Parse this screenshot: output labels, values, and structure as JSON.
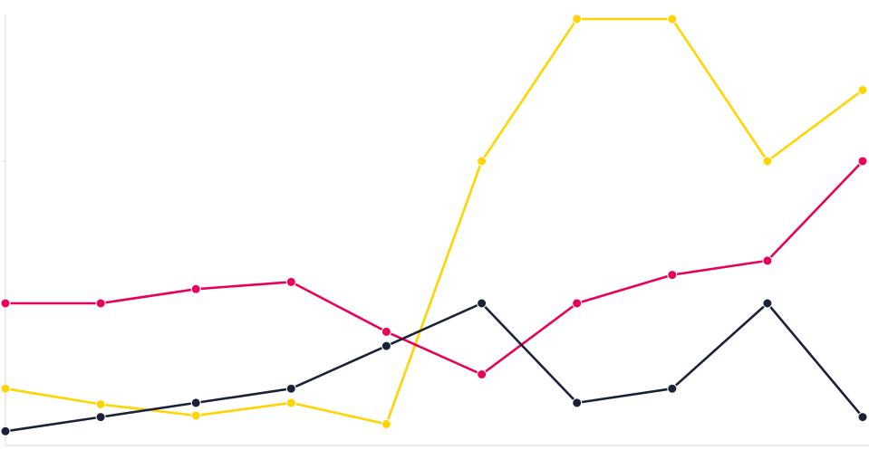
{
  "chart_data": {
    "type": "line",
    "title": "",
    "xlabel": "",
    "ylabel": "",
    "x": [
      1,
      2,
      3,
      4,
      5,
      6,
      7,
      8,
      9,
      10
    ],
    "ylim": [
      0,
      300
    ],
    "grid": false,
    "legend": "none",
    "series": [
      {
        "color": "#FFD400",
        "values": [
          40,
          29,
          21,
          30,
          15,
          200,
          300,
          300,
          200,
          250
        ]
      },
      {
        "color": "#E8005A",
        "values": [
          100,
          100,
          110,
          115,
          80,
          50,
          100,
          120,
          130,
          200
        ]
      },
      {
        "color": "#1B2238",
        "values": [
          10,
          20,
          30,
          40,
          70,
          100,
          30,
          40,
          100,
          20
        ]
      }
    ]
  }
}
